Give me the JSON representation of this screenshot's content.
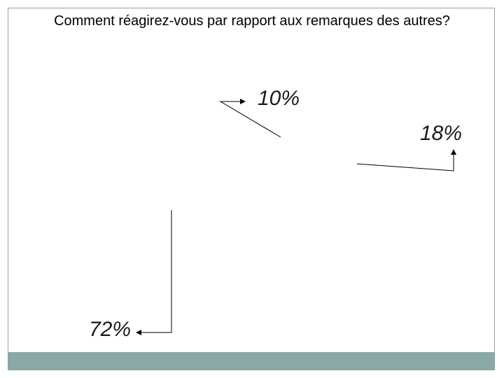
{
  "title": "Comment réagirez-vous par rapport aux remarques des autres?",
  "colors": {
    "frame": "#8aa8a8",
    "footer": "#8aa8a8",
    "leader": "#000000"
  },
  "chart_data": {
    "type": "pie",
    "title": "Comment réagirez-vous par rapport aux remarques des autres?",
    "slices": [
      {
        "label": "10%",
        "value": 10
      },
      {
        "label": "18%",
        "value": 18
      },
      {
        "label": "72%",
        "value": 72
      }
    ],
    "legend": "none"
  }
}
